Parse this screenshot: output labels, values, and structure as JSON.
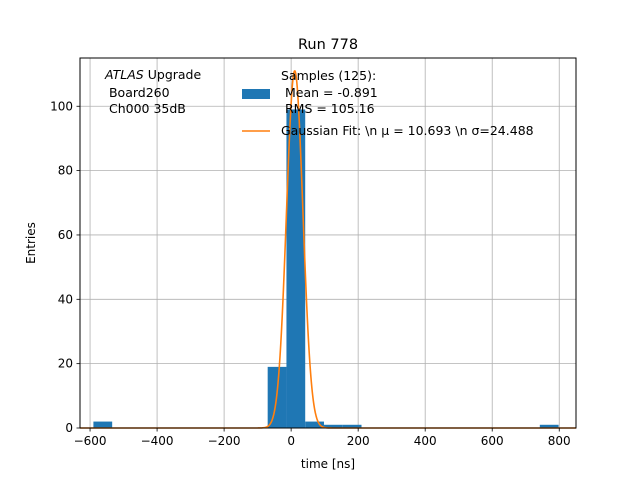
{
  "chart_data": {
    "type": "bar",
    "title": "Run 778",
    "xlabel": "time [ns]",
    "ylabel": "Entries",
    "xlim": [
      -630,
      850
    ],
    "ylim": [
      0,
      115
    ],
    "grid": true,
    "x_ticks": [
      -600,
      -400,
      -200,
      0,
      200,
      400,
      600,
      800
    ],
    "y_ticks": [
      0,
      20,
      40,
      60,
      80,
      100
    ],
    "annotation": {
      "prefix": "ATLAS",
      "suffix": "Upgrade",
      "lines": [
        " Board260",
        " Ch000 35dB"
      ]
    },
    "legend": {
      "placement": "top-right",
      "hist_lines": [
        "Samples (125):",
        " Mean = -0.891",
        " RMS = 105.16"
      ],
      "fit_label": "Gaussian Fit: \\n μ = 10.693 \\n σ=24.488"
    },
    "histogram": {
      "name": "Samples (125):",
      "color": "#1f77b4",
      "bins": [
        {
          "x0": -590,
          "x1": -534,
          "count": 2
        },
        {
          "x0": -70,
          "x1": -14,
          "count": 19
        },
        {
          "x0": -14,
          "x1": 42,
          "count": 99
        },
        {
          "x0": 42,
          "x1": 98,
          "count": 2
        },
        {
          "x0": 98,
          "x1": 154,
          "count": 1
        },
        {
          "x0": 154,
          "x1": 210,
          "count": 1
        },
        {
          "x0": 742,
          "x1": 798,
          "count": 1
        }
      ]
    },
    "fit": {
      "name": "Gaussian Fit",
      "type": "gaussian",
      "color": "#ff7f0e",
      "mu": 10.693,
      "sigma": 24.488,
      "amplitude": 111
    }
  }
}
